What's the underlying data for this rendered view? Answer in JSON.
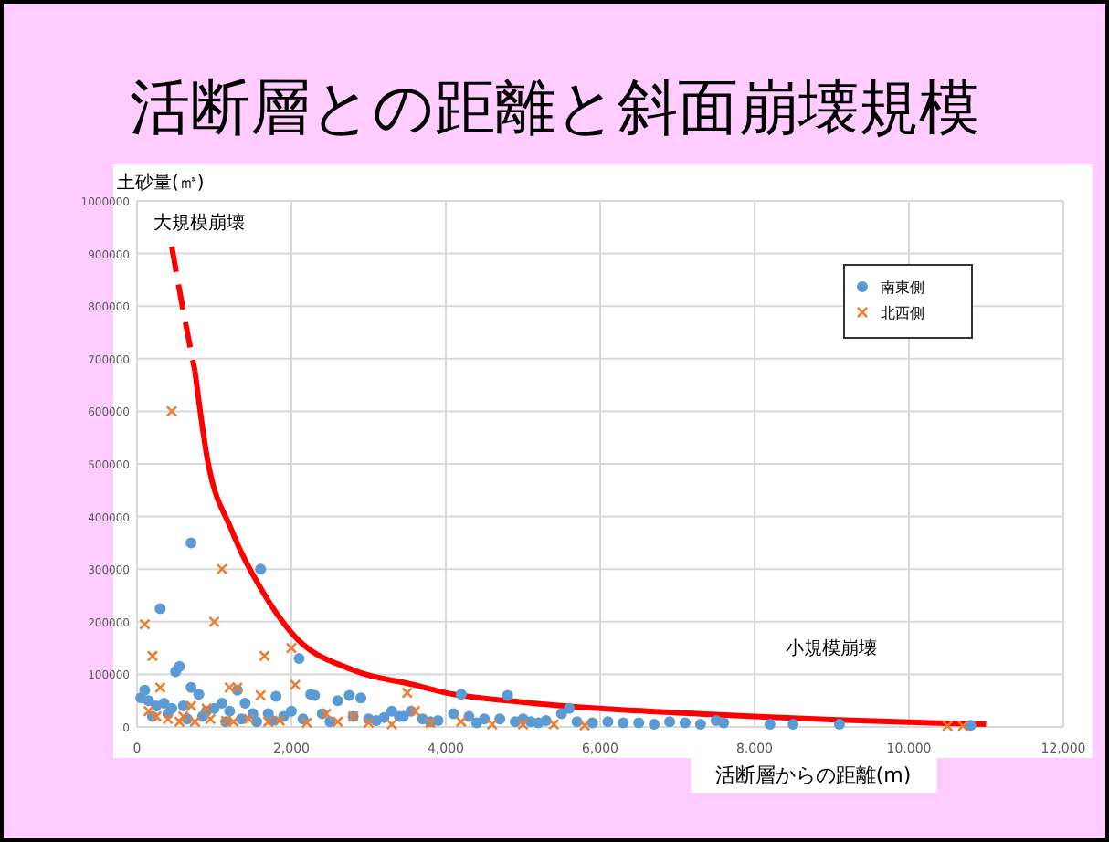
{
  "chart_data": {
    "type": "scatter",
    "title": "活断層との距離と斜面崩壊規模",
    "ylabel": "土砂量(㎥)",
    "xlabel": "活断層からの距離(m)",
    "xlim": [
      0,
      12000
    ],
    "ylim": [
      0,
      1000000
    ],
    "xticks": [
      0,
      {
        "value": 2000,
        "label": "2,000"
      },
      {
        "value": 4000,
        "label": "4,000"
      },
      {
        "value": 6000,
        "label": "6,000"
      },
      {
        "value": 8000,
        "label": "8,000"
      },
      {
        "value": 10000,
        "label": "10,000"
      },
      {
        "value": 12000,
        "label": "12,000"
      }
    ],
    "yticks": [
      0,
      100000,
      200000,
      300000,
      400000,
      500000,
      600000,
      700000,
      800000,
      900000,
      1000000
    ],
    "grid": true,
    "legend": "top right",
    "annotations": [
      "大規模崩壊",
      "小規模崩壊"
    ],
    "series": [
      {
        "name": "南東側",
        "color": "#5b9bd5",
        "marker": "circle",
        "x": [
          700,
          1600,
          300,
          550,
          500,
          2100,
          100,
          700,
          1300,
          800,
          2300,
          2250,
          2600,
          2750,
          2900,
          3300,
          3550,
          4200,
          4800,
          5500,
          5600,
          5000,
          1800,
          1100,
          1400,
          150,
          250,
          350,
          450,
          600,
          900,
          1000,
          1200,
          1500,
          1700,
          1900,
          2000,
          2400,
          2800,
          3000,
          3100,
          3200,
          3400,
          3700,
          3900,
          4100,
          4300,
          4500,
          4700,
          5100,
          5300,
          5700,
          5900,
          6100,
          6300,
          6500,
          6700,
          6900,
          7100,
          7300,
          7500,
          7600,
          8200,
          8500,
          9100,
          10800,
          50,
          200,
          400,
          650,
          850,
          1150,
          1350,
          1550,
          1750,
          2150,
          2500,
          3450,
          3800,
          4400,
          4900,
          5200
        ],
        "values": [
          350000,
          300000,
          225000,
          115000,
          105000,
          130000,
          70000,
          75000,
          70000,
          62000,
          60000,
          62000,
          50000,
          60000,
          55000,
          30000,
          30000,
          62000,
          60000,
          25000,
          35000,
          15000,
          58000,
          45000,
          45000,
          50000,
          40000,
          45000,
          35000,
          40000,
          30000,
          35000,
          30000,
          25000,
          25000,
          20000,
          30000,
          25000,
          20000,
          15000,
          12000,
          18000,
          20000,
          15000,
          12000,
          25000,
          20000,
          15000,
          15000,
          10000,
          12000,
          10000,
          8000,
          10000,
          8000,
          8000,
          5000,
          10000,
          8000,
          5000,
          12000,
          8000,
          5000,
          5000,
          5000,
          3000,
          55000,
          20000,
          25000,
          15000,
          20000,
          10000,
          15000,
          10000,
          12000,
          15000,
          10000,
          20000,
          10000,
          8000,
          10000,
          8000
        ]
      },
      {
        "name": "北西側",
        "color": "#ed7d31",
        "marker": "cross",
        "x": [
          450,
          1100,
          1000,
          100,
          200,
          2000,
          1650,
          300,
          1200,
          1300,
          2050,
          3500,
          1600,
          3600,
          2800,
          700,
          900,
          2450,
          150,
          250,
          400,
          550,
          600,
          750,
          950,
          1150,
          1250,
          1450,
          1700,
          1850,
          2200,
          2600,
          3000,
          3300,
          3800,
          4200,
          4600,
          5000,
          5400,
          5800,
          10500,
          10700
        ],
        "values": [
          600000,
          300000,
          200000,
          195000,
          135000,
          150000,
          135000,
          75000,
          75000,
          75000,
          80000,
          65000,
          60000,
          30000,
          20000,
          40000,
          35000,
          25000,
          30000,
          20000,
          15000,
          10000,
          20000,
          10000,
          15000,
          12000,
          10000,
          15000,
          10000,
          12000,
          8000,
          10000,
          8000,
          5000,
          8000,
          10000,
          5000,
          5000,
          5000,
          3000,
          2000,
          2000
        ]
      },
      {
        "type": "line",
        "color": "#ff0000",
        "line_style": "dashed",
        "marker": "none",
        "x": [
          450,
          600,
          750
        ],
        "values": [
          913000,
          790000,
          677000
        ]
      },
      {
        "type": "line",
        "color": "#ff0000",
        "line_style": "solid",
        "marker": "none",
        "x": [
          750,
          906,
          1223,
          1617,
          2012,
          2800,
          3590,
          4000,
          5000,
          6000,
          7000,
          8000,
          9000,
          10000,
          11000
        ],
        "values": [
          677000,
          514000,
          375000,
          260000,
          177000,
          108000,
          80000,
          65000,
          47000,
          35000,
          27000,
          20000,
          14000,
          9000,
          5000
        ]
      }
    ]
  }
}
